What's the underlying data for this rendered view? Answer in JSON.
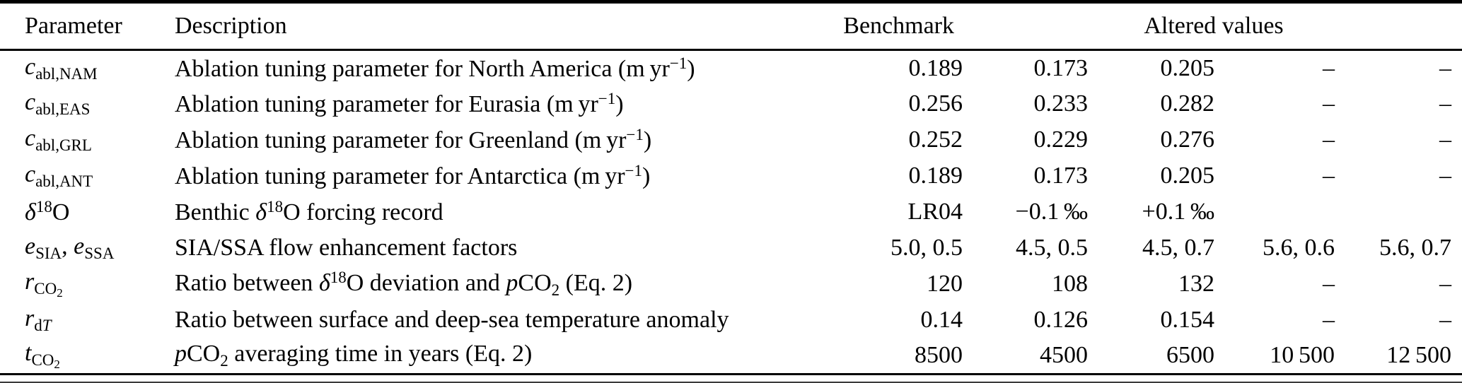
{
  "table": {
    "headers": {
      "parameter": "Parameter",
      "description": "Description",
      "benchmark": "Benchmark",
      "altered_values": "Altered values"
    },
    "rows": [
      {
        "param": [
          {
            "t": "c",
            "s": "i"
          },
          {
            "t": "abl,NAM",
            "s": "sub"
          }
        ],
        "desc": [
          {
            "t": "Ablation tuning parameter for North America (m yr"
          },
          {
            "t": "−1",
            "s": "sup"
          },
          {
            "t": ")"
          }
        ],
        "values": [
          "0.189",
          "0.173",
          "0.205",
          "–",
          "–"
        ]
      },
      {
        "param": [
          {
            "t": "c",
            "s": "i"
          },
          {
            "t": "abl,EAS",
            "s": "sub"
          }
        ],
        "desc": [
          {
            "t": "Ablation tuning parameter for Eurasia (m yr"
          },
          {
            "t": "−1",
            "s": "sup"
          },
          {
            "t": ")"
          }
        ],
        "values": [
          "0.256",
          "0.233",
          "0.282",
          "–",
          "–"
        ]
      },
      {
        "param": [
          {
            "t": "c",
            "s": "i"
          },
          {
            "t": "abl,GRL",
            "s": "sub"
          }
        ],
        "desc": [
          {
            "t": "Ablation tuning parameter for Greenland (m yr"
          },
          {
            "t": "−1",
            "s": "sup"
          },
          {
            "t": ")"
          }
        ],
        "values": [
          "0.252",
          "0.229",
          "0.276",
          "–",
          "–"
        ]
      },
      {
        "param": [
          {
            "t": "c",
            "s": "i"
          },
          {
            "t": "abl,ANT",
            "s": "sub"
          }
        ],
        "desc": [
          {
            "t": "Ablation tuning parameter for Antarctica (m yr"
          },
          {
            "t": "−1",
            "s": "sup"
          },
          {
            "t": ")"
          }
        ],
        "values": [
          "0.189",
          "0.173",
          "0.205",
          "–",
          "–"
        ]
      },
      {
        "param": [
          {
            "t": "δ",
            "s": "i"
          },
          {
            "t": "18",
            "s": "sup"
          },
          {
            "t": "O"
          }
        ],
        "desc": [
          {
            "t": "Benthic "
          },
          {
            "t": "δ",
            "s": "i"
          },
          {
            "t": "18",
            "s": "sup"
          },
          {
            "t": "O forcing record"
          }
        ],
        "values": [
          "LR04",
          "−0.1 ‰",
          "+0.1 ‰",
          "",
          ""
        ]
      },
      {
        "param": [
          {
            "t": "e",
            "s": "i"
          },
          {
            "t": "SIA",
            "s": "sub"
          },
          {
            "t": ", "
          },
          {
            "t": "e",
            "s": "i"
          },
          {
            "t": "SSA",
            "s": "sub"
          }
        ],
        "desc": [
          {
            "t": "SIA/SSA flow enhancement factors"
          }
        ],
        "values": [
          "5.0, 0.5",
          "4.5, 0.5",
          "4.5, 0.7",
          "5.6, 0.6",
          "5.6, 0.7"
        ]
      },
      {
        "param": [
          {
            "t": "r",
            "s": "i"
          },
          {
            "t": "CO",
            "s": "sub"
          },
          {
            "t": "2",
            "s": "sub2"
          }
        ],
        "desc": [
          {
            "t": "Ratio between "
          },
          {
            "t": "δ",
            "s": "i"
          },
          {
            "t": "18",
            "s": "sup"
          },
          {
            "t": "O deviation and "
          },
          {
            "t": "p",
            "s": "i"
          },
          {
            "t": "CO"
          },
          {
            "t": "2",
            "s": "sub"
          },
          {
            "t": " (Eq. 2)"
          }
        ],
        "values": [
          "120",
          "108",
          "132",
          "–",
          "–"
        ]
      },
      {
        "param": [
          {
            "t": "r",
            "s": "i"
          },
          {
            "t": "d",
            "s": "sub"
          },
          {
            "t": "T",
            "s": "subi"
          }
        ],
        "desc": [
          {
            "t": "Ratio between surface and deep-sea temperature anomaly"
          }
        ],
        "values": [
          "0.14",
          "0.126",
          "0.154",
          "–",
          "–"
        ]
      },
      {
        "param": [
          {
            "t": "t",
            "s": "i"
          },
          {
            "t": "CO",
            "s": "sub"
          },
          {
            "t": "2",
            "s": "sub2"
          }
        ],
        "desc": [
          {
            "t": "p",
            "s": "i"
          },
          {
            "t": "CO"
          },
          {
            "t": "2",
            "s": "sub"
          },
          {
            "t": " averaging time in years (Eq. 2)"
          }
        ],
        "values": [
          "8500",
          "4500",
          "6500",
          "10 500",
          "12 500"
        ]
      }
    ]
  }
}
